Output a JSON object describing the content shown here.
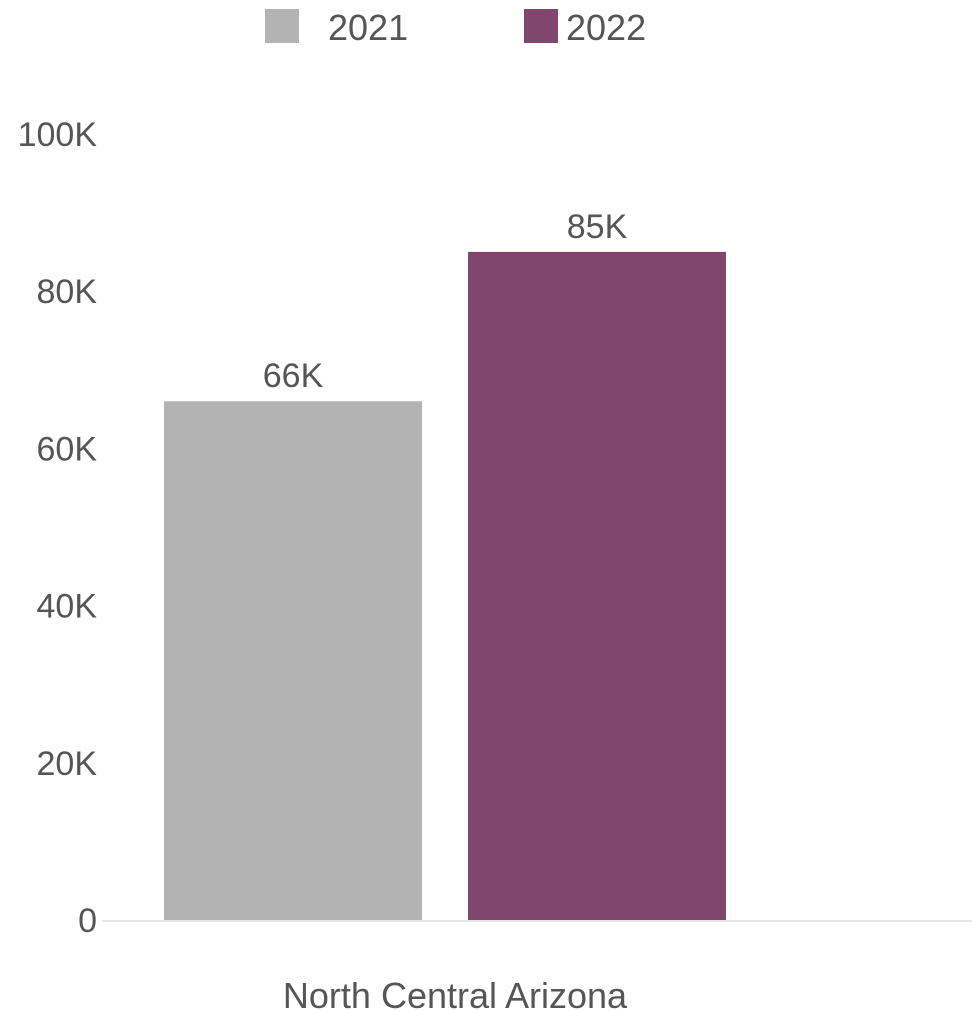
{
  "chart_data": {
    "type": "bar",
    "categories": [
      "North Central Arizona"
    ],
    "series": [
      {
        "name": "2021",
        "values": [
          66000
        ],
        "label": "66K",
        "color": "#b3b3b3"
      },
      {
        "name": "2022",
        "values": [
          85000
        ],
        "label": "85K",
        "color": "#80466e"
      }
    ],
    "title": "",
    "xlabel": "",
    "ylabel": "",
    "ylim": [
      0,
      100000
    ],
    "yticks": [
      {
        "value": 0,
        "label": "0"
      },
      {
        "value": 20000,
        "label": "20K"
      },
      {
        "value": 40000,
        "label": "40K"
      },
      {
        "value": 60000,
        "label": "60K"
      },
      {
        "value": 80000,
        "label": "80K"
      },
      {
        "value": 100000,
        "label": "100K"
      }
    ],
    "grid": false,
    "legend_position": "top-center",
    "axis_color": "#e6e6e6"
  }
}
